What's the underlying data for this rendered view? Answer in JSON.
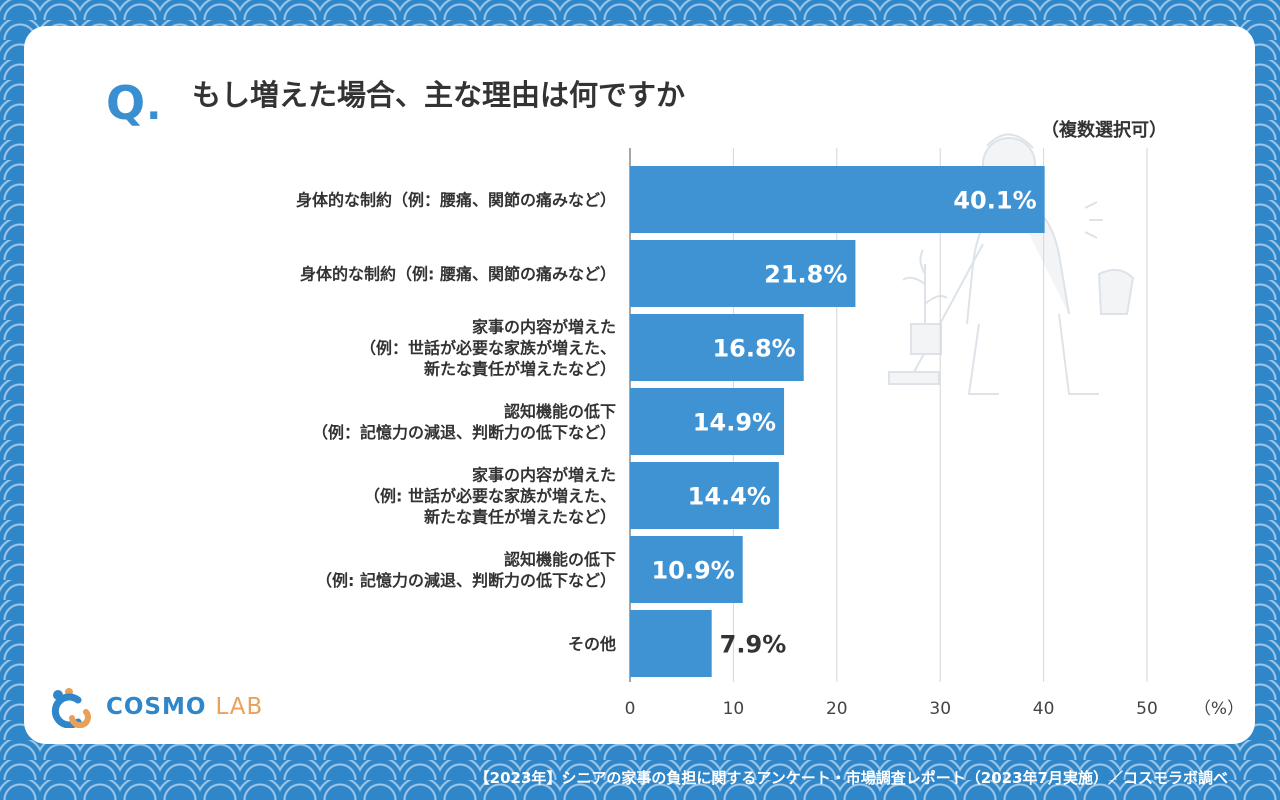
{
  "question": {
    "mark": "Q",
    "dot": ".",
    "title": "もし増えた場合、主な理由は何ですか",
    "note": "（複数選択可）"
  },
  "logo": {
    "main": "COSMO",
    "sub": "LAB"
  },
  "footer": "【2023年】シニアの家事の負担に関するアンケート・市場調査レポート（2023年7月実施）／コスモラボ調べ",
  "colors": {
    "bar": "#3f93d3",
    "accent": "#2f86c9",
    "background_pattern": "#2f86c9"
  },
  "chart_data": {
    "type": "bar",
    "orientation": "horizontal",
    "categories": [
      [
        "身体的な制約（例：腰痛、関節の痛みなど）"
      ],
      [
        "身体的な制約（例: 腰痛、関節の痛みなど）"
      ],
      [
        "家事の内容が増えた",
        "（例：世話が必要な家族が増えた、",
        "新たな責任が増えたなど）"
      ],
      [
        "認知機能の低下",
        "（例：記憶力の減退、判断力の低下など）"
      ],
      [
        "家事の内容が増えた",
        "（例: 世話が必要な家族が増えた、",
        "新たな責任が増えたなど）"
      ],
      [
        "認知機能の低下",
        "（例: 記憶力の減退、判断力の低下など）"
      ],
      [
        "その他"
      ]
    ],
    "values": [
      40.1,
      21.8,
      16.8,
      14.9,
      14.4,
      10.9,
      7.9
    ],
    "value_labels": [
      "40.1%",
      "21.8%",
      "16.8%",
      "14.9%",
      "14.4%",
      "10.9%",
      "7.9%"
    ],
    "xticks": [
      0,
      10,
      20,
      30,
      40,
      50
    ],
    "xunit": "（%）",
    "xlim": [
      0,
      50
    ],
    "grid": true
  }
}
